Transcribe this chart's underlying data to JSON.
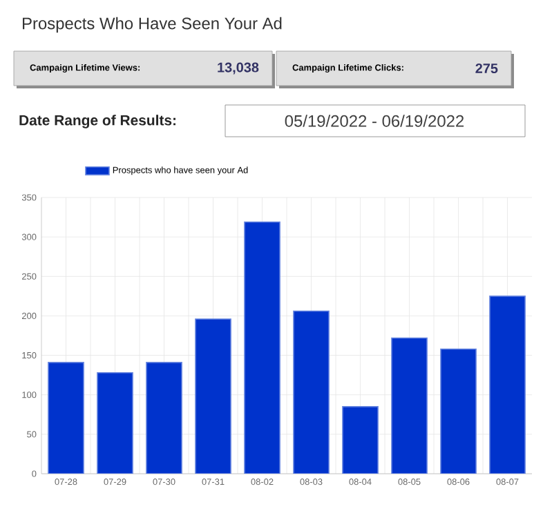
{
  "chart_data": {
    "type": "bar",
    "title": "Prospects Who Have Seen Your Ad",
    "annotations": [
      "Campaign Lifetime Views:",
      "13,038",
      "Campaign Lifetime Clicks:",
      "275",
      "Date Range of Results:",
      "05/19/2022 - 06/19/2022"
    ],
    "categories": [
      "07-28",
      "07-29",
      "07-30",
      "07-31",
      "08-02",
      "08-03",
      "08-04",
      "08-05",
      "08-06",
      "08-07"
    ],
    "series": [
      {
        "name": "Prospects who have seen your Ad",
        "color": "#0033cc",
        "values": [
          141,
          128,
          141,
          196,
          319,
          206,
          85,
          172,
          158,
          225
        ]
      }
    ],
    "ylim": [
      0,
      350
    ],
    "yticks": [
      0,
      50,
      100,
      150,
      200,
      250,
      300,
      350
    ],
    "grid": true,
    "legend": "top"
  }
}
